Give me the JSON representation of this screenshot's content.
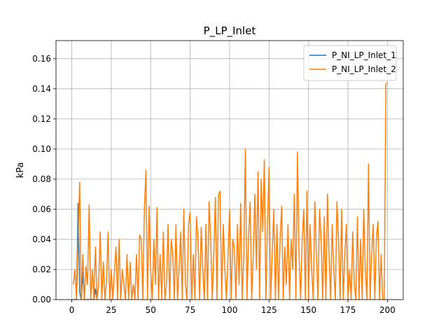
{
  "chart_data": {
    "type": "line",
    "title": "P_LP_Inlet",
    "ylabel": "kPa",
    "xlim": [
      -10,
      210
    ],
    "xticks": [
      0,
      25,
      50,
      75,
      100,
      125,
      150,
      175,
      200
    ],
    "ylim": [
      0,
      0.172
    ],
    "yticks": [
      {
        "value": 0,
        "label": "0.00"
      },
      {
        "value": 0.02,
        "label": "0.02"
      },
      {
        "value": 0.04,
        "label": "0.04"
      },
      {
        "value": 0.06,
        "label": "0.06"
      },
      {
        "value": 0.08,
        "label": "0.08"
      },
      {
        "value": 0.1,
        "label": "0.10"
      },
      {
        "value": 0.12,
        "label": "0.12"
      },
      {
        "value": 0.14,
        "label": "0.14"
      },
      {
        "value": 0.16,
        "label": "0.16"
      }
    ],
    "grid": true,
    "legend": "upper right",
    "series": [
      {
        "name": "P_NI_LP_Inlet_1",
        "color": "#1f77b4",
        "x": [
          1,
          2,
          3,
          4,
          5,
          6,
          7,
          8,
          9,
          10,
          11,
          12,
          13,
          14,
          15,
          16
        ],
        "values": [
          0,
          0,
          0,
          0.064,
          0.005,
          0,
          0.018,
          0,
          0,
          0,
          0,
          0,
          0,
          0,
          0.007,
          0
        ]
      },
      {
        "name": "P_NI_LP_Inlet_2",
        "color": "#ff7f0e",
        "x": [
          1,
          2,
          3,
          4,
          5,
          6,
          7,
          8,
          9,
          10,
          11,
          12,
          13,
          14,
          15,
          16,
          17,
          18,
          19,
          20,
          21,
          22,
          23,
          24,
          25,
          26,
          27,
          28,
          29,
          30,
          31,
          32,
          33,
          34,
          35,
          36,
          37,
          38,
          39,
          40,
          41,
          42,
          43,
          44,
          45,
          46,
          47,
          48,
          49,
          50,
          51,
          52,
          53,
          54,
          55,
          56,
          57,
          58,
          59,
          60,
          61,
          62,
          63,
          64,
          65,
          66,
          67,
          68,
          69,
          70,
          71,
          72,
          73,
          74,
          75,
          76,
          77,
          78,
          79,
          80,
          81,
          82,
          83,
          84,
          85,
          86,
          87,
          88,
          89,
          90,
          91,
          92,
          93,
          94,
          95,
          96,
          97,
          98,
          99,
          100,
          101,
          102,
          103,
          104,
          105,
          106,
          107,
          108,
          109,
          110,
          111,
          112,
          113,
          114,
          115,
          116,
          117,
          118,
          119,
          120,
          121,
          122,
          123,
          124,
          125,
          126,
          127,
          128,
          129,
          130,
          131,
          132,
          133,
          134,
          135,
          136,
          137,
          138,
          139,
          140,
          141,
          142,
          143,
          144,
          145,
          146,
          147,
          148,
          149,
          150,
          151,
          152,
          153,
          154,
          155,
          156,
          157,
          158,
          159,
          160,
          161,
          162,
          163,
          164,
          165,
          166,
          167,
          168,
          169,
          170,
          171,
          172,
          173,
          174,
          175,
          176,
          177,
          178,
          179,
          180,
          181,
          182,
          183,
          184,
          185,
          186,
          187,
          188,
          189,
          190,
          191,
          192,
          193,
          194,
          195,
          196,
          197,
          198,
          199,
          200
        ],
        "values": [
          0.01,
          0.02,
          0.0,
          0.04,
          0.078,
          0.0,
          0.03,
          0.0,
          0.022,
          0.01,
          0.063,
          0.0,
          0.02,
          0.0,
          0.035,
          0.0,
          0.01,
          0.045,
          0.0,
          0.025,
          0.0,
          0.012,
          0.045,
          0.0,
          0.02,
          0.0,
          0.018,
          0.035,
          0.0,
          0.04,
          0.0,
          0.02,
          0.01,
          0.0,
          0.03,
          0.0,
          0.025,
          0.0,
          0.01,
          0.0,
          0.03,
          0.0,
          0.043,
          0.04,
          0.0,
          0.06,
          0.086,
          0.0,
          0.062,
          0.02,
          0.0,
          0.04,
          0.01,
          0.061,
          0.0,
          0.03,
          0.0,
          0.045,
          0.0,
          0.01,
          0.05,
          0.0,
          0.04,
          0.03,
          0.0,
          0.05,
          0.0,
          0.02,
          0.045,
          0.0,
          0.06,
          0.01,
          0.0,
          0.05,
          0.058,
          0.0,
          0.03,
          0.0,
          0.055,
          0.04,
          0.0,
          0.048,
          0.02,
          0.0,
          0.05,
          0.0,
          0.065,
          0.04,
          0.0,
          0.03,
          0.068,
          0.0,
          0.07,
          0.072,
          0.0,
          0.05,
          0.02,
          0.0,
          0.03,
          0.06,
          0.0,
          0.04,
          0.035,
          0.0,
          0.05,
          0.01,
          0.064,
          0.0,
          0.03,
          0.1,
          0.0,
          0.04,
          0.065,
          0.0,
          0.03,
          0.07,
          0.02,
          0.085,
          0.0,
          0.08,
          0.045,
          0.093,
          0.0,
          0.05,
          0.088,
          0.0,
          0.03,
          0.06,
          0.0,
          0.05,
          0.0,
          0.04,
          0.062,
          0.0,
          0.035,
          0.01,
          0.05,
          0.0,
          0.04,
          0.02,
          0.07,
          0.0,
          0.098,
          0.03,
          0.0,
          0.04,
          0.06,
          0.0,
          0.072,
          0.0,
          0.05,
          0.02,
          0.0,
          0.065,
          0.03,
          0.0,
          0.06,
          0.04,
          0.0,
          0.055,
          0.0,
          0.07,
          0.03,
          0.0,
          0.05,
          0.02,
          0.0,
          0.065,
          0.04,
          0.0,
          0.06,
          0.0,
          0.03,
          0.05,
          0.0,
          0.02,
          0.0,
          0.045,
          0.01,
          0.0,
          0.055,
          0.0,
          0.04,
          0.0,
          0.06,
          0.02,
          0.0,
          0.09,
          0.0,
          0.03,
          0.05,
          0.0,
          0.04,
          0.052,
          0.0,
          0.03,
          0.0,
          0.0,
          0.143,
          0.144
        ]
      }
    ]
  }
}
